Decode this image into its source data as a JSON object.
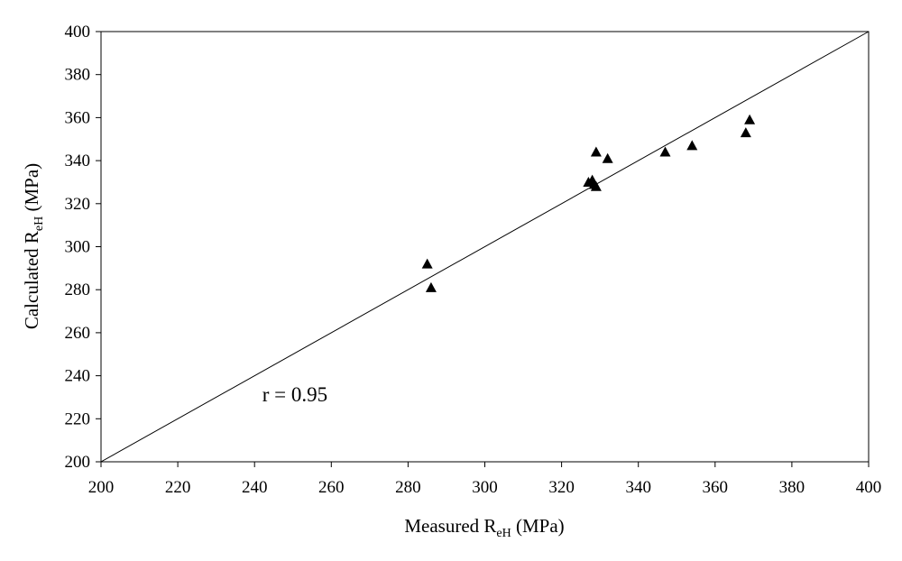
{
  "chart_data": {
    "type": "scatter",
    "xlabel": {
      "main": "Measured R",
      "sub": "eH",
      "unit": " (MPa)"
    },
    "ylabel": {
      "main": "Calculated R",
      "sub": "eH",
      "unit": " (MPa)"
    },
    "xlim": [
      200,
      400
    ],
    "ylim": [
      200,
      400
    ],
    "x_ticks": [
      200,
      220,
      240,
      260,
      280,
      300,
      320,
      340,
      360,
      380,
      400
    ],
    "y_ticks": [
      200,
      220,
      240,
      260,
      280,
      300,
      320,
      340,
      360,
      380,
      400
    ],
    "grid": false,
    "marker": "triangle",
    "marker_color": "#000000",
    "reference_line": {
      "from": [
        200,
        200
      ],
      "to": [
        400,
        400
      ]
    },
    "annotation": {
      "text": "r = 0.95",
      "x": 242,
      "y": 228
    },
    "points": [
      {
        "x": 285,
        "y": 292
      },
      {
        "x": 286,
        "y": 281
      },
      {
        "x": 327,
        "y": 330
      },
      {
        "x": 328,
        "y": 331
      },
      {
        "x": 328.5,
        "y": 329
      },
      {
        "x": 329,
        "y": 328
      },
      {
        "x": 329,
        "y": 344
      },
      {
        "x": 332,
        "y": 341
      },
      {
        "x": 347,
        "y": 344
      },
      {
        "x": 354,
        "y": 347
      },
      {
        "x": 368,
        "y": 353
      },
      {
        "x": 369,
        "y": 359
      }
    ]
  }
}
